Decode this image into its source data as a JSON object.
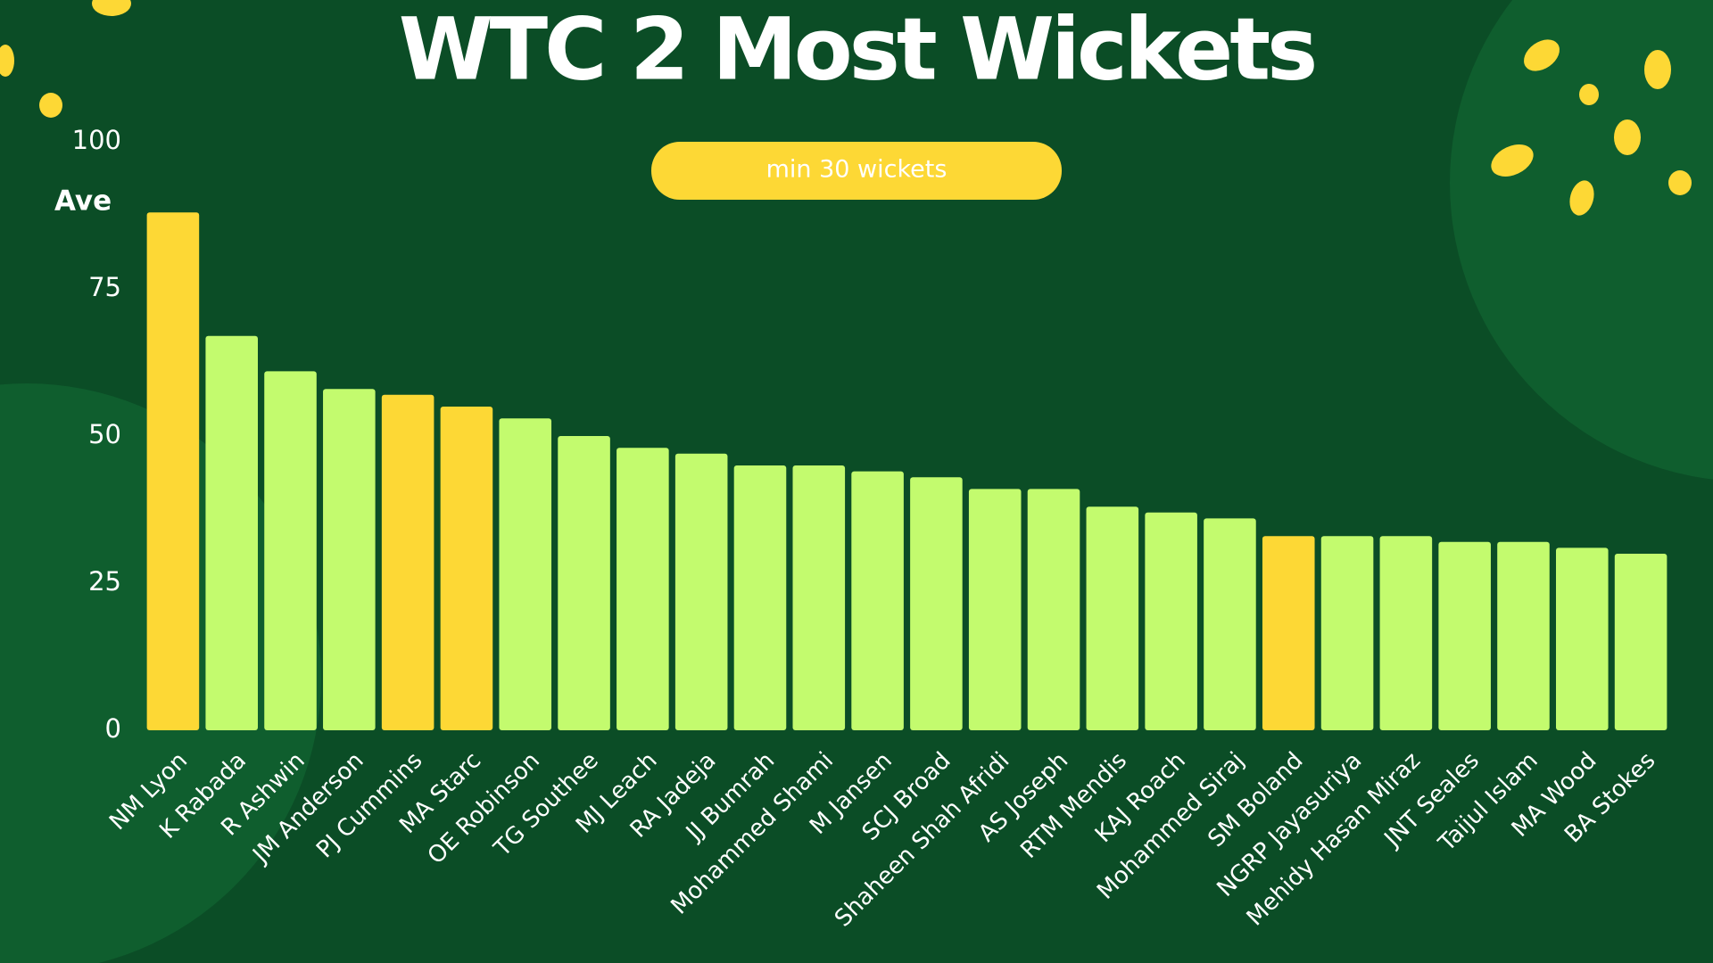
{
  "chart_data": {
    "type": "bar",
    "title": "WTC 2 Most Wickets",
    "subtitle": "min 30 wickets",
    "y_label": "Ave",
    "categories": [
      "NM Lyon",
      "K Rabada",
      "R Ashwin",
      "JM Anderson",
      "PJ Cummins",
      "MA Starc",
      "OE Robinson",
      "TG Southee",
      "MJ Leach",
      "RA Jadeja",
      "JJ Bumrah",
      "Mohammed Shami",
      "M Jansen",
      "SCJ Broad",
      "Shaheen Shah Afridi",
      "AS Joseph",
      "RTM Mendis",
      "KAJ Roach",
      "Mohammed Siraj",
      "SM Boland",
      "NGRP Jayasuriya",
      "Mehidy Hasan Miraz",
      "JNT Seales",
      "Taijul Islam",
      "MA Wood",
      "BA Stokes"
    ],
    "values": [
      88,
      67,
      61,
      58,
      57,
      55,
      53,
      50,
      48,
      47,
      45,
      45,
      44,
      43,
      41,
      41,
      38,
      37,
      36,
      33,
      33,
      33,
      32,
      32,
      31,
      30
    ],
    "colors": [
      "#fdd835",
      "#c3fb6e",
      "#c3fb6e",
      "#c3fb6e",
      "#fdd835",
      "#fdd835",
      "#c3fb6e",
      "#c3fb6e",
      "#c3fb6e",
      "#c3fb6e",
      "#c3fb6e",
      "#c3fb6e",
      "#c3fb6e",
      "#c3fb6e",
      "#c3fb6e",
      "#c3fb6e",
      "#c3fb6e",
      "#c3fb6e",
      "#c3fb6e",
      "#fdd835",
      "#c3fb6e",
      "#c3fb6e",
      "#c3fb6e",
      "#c3fb6e",
      "#c3fb6e",
      "#c3fb6e"
    ],
    "ylim": [
      0,
      100
    ],
    "yticks": [
      0,
      25,
      50,
      75,
      100
    ],
    "grid": false
  }
}
